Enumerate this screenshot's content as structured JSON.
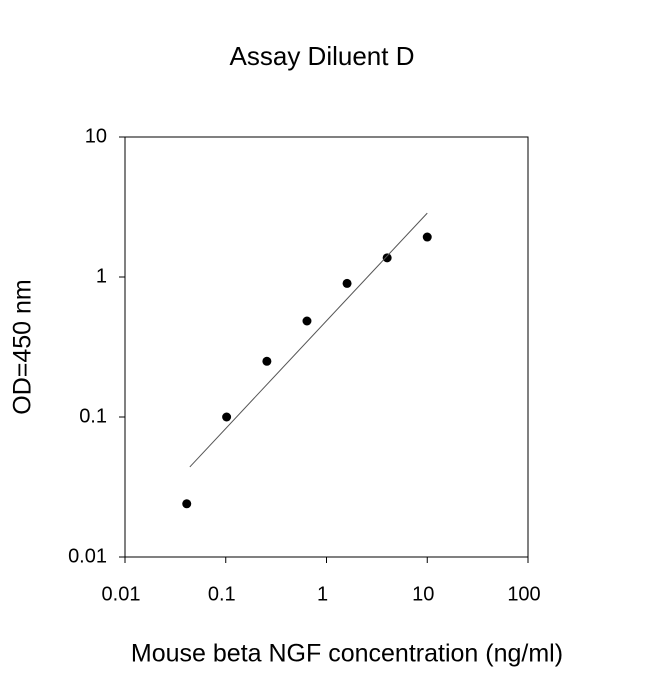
{
  "chart_data": {
    "type": "scatter",
    "title": "Assay Diluent D",
    "x_label": "Mouse beta NGF concentration (ng/ml)",
    "y_label": "OD=450 nm",
    "x_log": true,
    "y_log": true,
    "xlim": [
      0.01,
      100
    ],
    "ylim": [
      0.01,
      10
    ],
    "xticks": [
      0.01,
      0.1,
      1,
      10,
      100
    ],
    "yticks": [
      0.01,
      0.1,
      1,
      10
    ],
    "series": [
      {
        "style": "points",
        "color": "#000000",
        "x": [
          0.041,
          0.102,
          0.256,
          0.64,
          1.6,
          4,
          10
        ],
        "values": [
          0.024,
          0.1,
          0.25,
          0.485,
          0.9,
          1.37,
          1.93
        ]
      },
      {
        "style": "line",
        "color": "#555555",
        "x": [
          0.044,
          10
        ],
        "values": [
          0.044,
          2.86
        ]
      }
    ]
  }
}
